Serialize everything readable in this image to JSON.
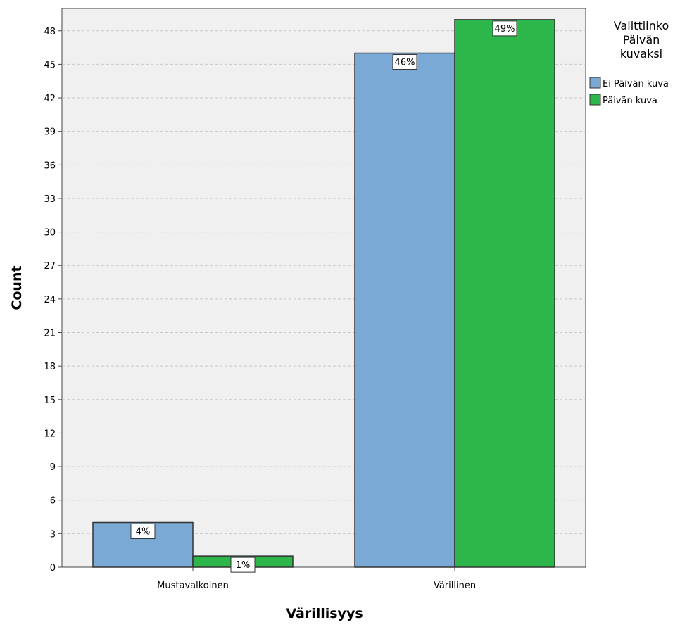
{
  "chart_data": {
    "type": "bar",
    "xlabel": "Värillisyys",
    "ylabel": "Count",
    "categories": [
      "Mustavalkoinen",
      "Värillinen"
    ],
    "ylim": [
      0,
      50
    ],
    "yticks": [
      0,
      3,
      6,
      9,
      12,
      15,
      18,
      21,
      24,
      27,
      30,
      33,
      36,
      39,
      42,
      45,
      48
    ],
    "grid": true,
    "legend": {
      "title_lines": [
        "Valittiinko",
        "Päivän",
        "kuvaksi"
      ],
      "placement": "right"
    },
    "series": [
      {
        "name": "Ei Päivän kuva",
        "color": "#7ba9d6",
        "values": [
          4,
          46
        ],
        "labels": [
          "4%",
          "46%"
        ]
      },
      {
        "name": "Päivän kuva",
        "color": "#2db64a",
        "values": [
          1,
          49
        ],
        "labels": [
          "1%",
          "49%"
        ]
      }
    ]
  }
}
